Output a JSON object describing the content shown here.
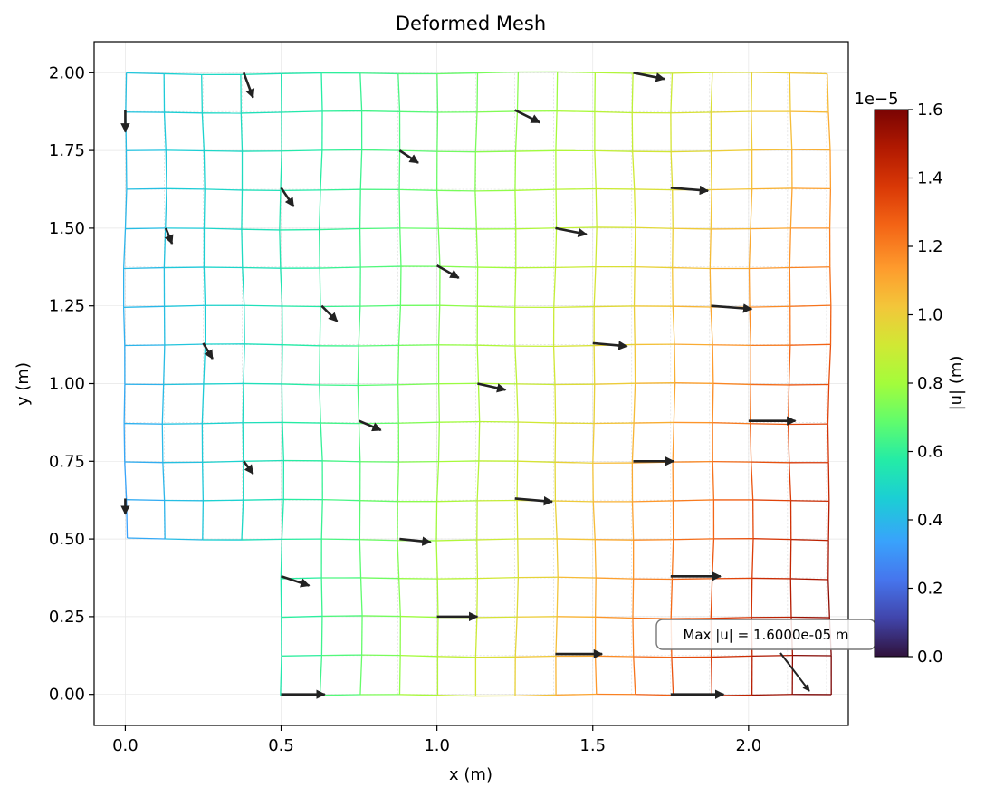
{
  "chart_data": {
    "type": "mesh",
    "title": "Deformed Mesh",
    "xlabel": "x (m)",
    "ylabel": "y (m)",
    "xlim": [
      -0.1,
      2.32
    ],
    "ylim": [
      -0.1,
      2.1
    ],
    "xticks": [
      0.0,
      0.5,
      1.0,
      1.5,
      2.0
    ],
    "xtick_labels": [
      "0.0",
      "0.5",
      "1.0",
      "1.5",
      "2.0"
    ],
    "yticks": [
      0.0,
      0.25,
      0.5,
      0.75,
      1.0,
      1.25,
      1.5,
      1.75,
      2.0
    ],
    "ytick_labels": [
      "0.00",
      "0.25",
      "0.50",
      "0.75",
      "1.00",
      "1.25",
      "1.50",
      "1.75",
      "2.00"
    ],
    "grid": true,
    "colorbar": {
      "label": "|u| (m)",
      "exponent_label": "1e−5",
      "ticks": [
        0.0,
        0.2,
        0.4,
        0.6,
        0.8,
        1.0,
        1.2,
        1.4,
        1.6
      ],
      "tick_labels": [
        "0.0",
        "0.2",
        "0.4",
        "0.6",
        "0.8",
        "1.0",
        "1.2",
        "1.4",
        "1.6"
      ],
      "range": [
        0.0,
        1.6
      ],
      "colormap": "turbo"
    },
    "annotation": {
      "text": "Max |u| = 1.6000e-05 m",
      "point": [
        2.19,
        0.01
      ]
    },
    "arrows": [
      {
        "x": 0.5,
        "y": 0.0,
        "dx": 0.14,
        "dy": 0.0
      },
      {
        "x": 1.75,
        "y": 0.0,
        "dx": 0.17,
        "dy": 0.0
      },
      {
        "x": 1.0,
        "y": 0.25,
        "dx": 0.13,
        "dy": 0.0
      },
      {
        "x": 1.38,
        "y": 0.13,
        "dx": 0.15,
        "dy": 0.0
      },
      {
        "x": 1.75,
        "y": 0.38,
        "dx": 0.16,
        "dy": 0.0
      },
      {
        "x": 0.5,
        "y": 0.38,
        "dx": 0.09,
        "dy": -0.03
      },
      {
        "x": 0.88,
        "y": 0.5,
        "dx": 0.1,
        "dy": -0.01
      },
      {
        "x": 1.25,
        "y": 0.63,
        "dx": 0.12,
        "dy": -0.01
      },
      {
        "x": 1.63,
        "y": 0.75,
        "dx": 0.13,
        "dy": 0.0
      },
      {
        "x": 2.0,
        "y": 0.88,
        "dx": 0.15,
        "dy": 0.0
      },
      {
        "x": 0.0,
        "y": 0.63,
        "dx": 0.0,
        "dy": -0.05
      },
      {
        "x": 0.38,
        "y": 0.75,
        "dx": 0.03,
        "dy": -0.04
      },
      {
        "x": 0.75,
        "y": 0.88,
        "dx": 0.07,
        "dy": -0.03
      },
      {
        "x": 1.13,
        "y": 1.0,
        "dx": 0.09,
        "dy": -0.02
      },
      {
        "x": 1.5,
        "y": 1.13,
        "dx": 0.11,
        "dy": -0.01
      },
      {
        "x": 1.88,
        "y": 1.25,
        "dx": 0.13,
        "dy": -0.01
      },
      {
        "x": 0.25,
        "y": 1.13,
        "dx": 0.03,
        "dy": -0.05
      },
      {
        "x": 0.63,
        "y": 1.25,
        "dx": 0.05,
        "dy": -0.05
      },
      {
        "x": 1.0,
        "y": 1.38,
        "dx": 0.07,
        "dy": -0.04
      },
      {
        "x": 1.38,
        "y": 1.5,
        "dx": 0.1,
        "dy": -0.02
      },
      {
        "x": 1.75,
        "y": 1.63,
        "dx": 0.12,
        "dy": -0.01
      },
      {
        "x": 0.13,
        "y": 1.5,
        "dx": 0.02,
        "dy": -0.05
      },
      {
        "x": 0.5,
        "y": 1.63,
        "dx": 0.04,
        "dy": -0.06
      },
      {
        "x": 0.88,
        "y": 1.75,
        "dx": 0.06,
        "dy": -0.04
      },
      {
        "x": 1.25,
        "y": 1.88,
        "dx": 0.08,
        "dy": -0.04
      },
      {
        "x": 1.63,
        "y": 2.0,
        "dx": 0.1,
        "dy": -0.02
      },
      {
        "x": 0.0,
        "y": 1.88,
        "dx": 0.0,
        "dy": -0.07
      },
      {
        "x": 0.38,
        "y": 2.0,
        "dx": 0.03,
        "dy": -0.08
      }
    ]
  }
}
